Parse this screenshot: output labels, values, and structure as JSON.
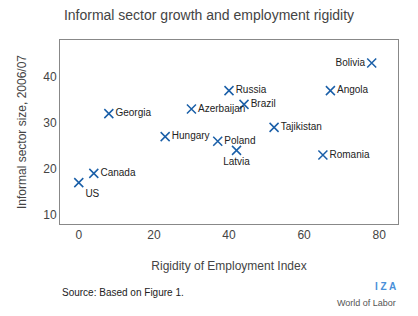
{
  "chart_data": {
    "type": "scatter",
    "title": "Informal sector growth and employment rigidity",
    "xlabel": "Rigidity of Employment Index",
    "ylabel": "Informal sector size, 2006/07",
    "xlim": [
      -5,
      85
    ],
    "ylim": [
      8,
      48
    ],
    "xticks": [
      0,
      20,
      40,
      60,
      80
    ],
    "yticks": [
      10,
      20,
      30,
      40
    ],
    "grid": false,
    "marker": "x",
    "color": "#1a5fa8",
    "labels": [
      "Bolivia",
      "Angola",
      "Russia",
      "Brazil",
      "Azerbaijan",
      "Georgia",
      "Tajikistan",
      "Hungary",
      "Poland",
      "Romania",
      "Latvia",
      "Canada",
      "US"
    ],
    "x": [
      78,
      67,
      40,
      44,
      30,
      8,
      52,
      23,
      37,
      65,
      42,
      4,
      0
    ],
    "values": [
      43,
      37,
      37,
      34,
      33,
      32,
      29,
      27,
      26,
      23,
      24,
      19,
      17
    ],
    "annotations": [
      "Source: Based on Figure 1.",
      "I Z A",
      "World of Labor"
    ]
  }
}
